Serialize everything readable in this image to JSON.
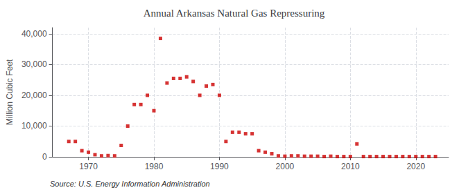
{
  "chart_data": {
    "type": "scatter",
    "title": "Annual Arkansas Natural Gas Repressuring",
    "ylabel": "Million Cubic Feet",
    "annotation": "Source: U.S. Energy Information Administration",
    "color": "#cc0000",
    "marker": "square",
    "grid": true,
    "xlim": [
      1964.5,
      2025
    ],
    "xticks": [
      1970,
      1980,
      1990,
      2000,
      2010,
      2020
    ],
    "ylim": [
      0,
      42000
    ],
    "yticks": [
      0,
      {
        "value": 10000,
        "label": "10,000"
      },
      {
        "value": 20000,
        "label": "20,000"
      },
      {
        "value": 30000,
        "label": "30,000"
      },
      {
        "value": 40000,
        "label": "40,000"
      }
    ],
    "x": [
      1967,
      1968,
      1969,
      1970,
      1971,
      1972,
      1973,
      1974,
      1975,
      1976,
      1977,
      1978,
      1979,
      1980,
      1981,
      1982,
      1983,
      1984,
      1985,
      1986,
      1987,
      1988,
      1989,
      1990,
      1991,
      1992,
      1993,
      1994,
      1995,
      1996,
      1997,
      1998,
      1999,
      2000,
      2001,
      2002,
      2003,
      2004,
      2005,
      2006,
      2007,
      2008,
      2009,
      2010,
      2011,
      2012,
      2013,
      2014,
      2015,
      2016,
      2017,
      2018,
      2019,
      2020,
      2021,
      2022,
      2023
    ],
    "values": [
      5000,
      5000,
      2000,
      1500,
      700,
      300,
      400,
      300,
      3700,
      10000,
      17000,
      17000,
      20000,
      15000,
      38500,
      24000,
      25500,
      25500,
      26000,
      24500,
      20000,
      23000,
      23500,
      20000,
      5000,
      8000,
      8000,
      7500,
      7500,
      2000,
      1500,
      1000,
      300,
      200,
      300,
      300,
      200,
      200,
      200,
      100,
      200,
      100,
      100,
      100,
      4200,
      100,
      100,
      100,
      100,
      100,
      100,
      100,
      100,
      100,
      100,
      100,
      100
    ]
  }
}
